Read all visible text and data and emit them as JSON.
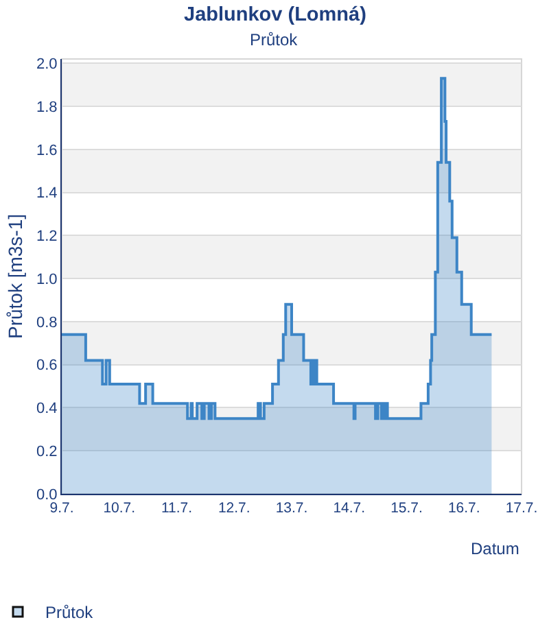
{
  "chart_data": {
    "type": "area",
    "title": "Jablunkov (Lomná)",
    "subtitle": "Průtok",
    "xlabel": "Datum",
    "ylabel": "Průtok [m3s-1]",
    "x": [
      "--07-09T00:00",
      "--07-09T10:00",
      "--07-09T10:00",
      "--07-09T17:00",
      "--07-09T17:00",
      "--07-09T18:30",
      "--07-09T18:30",
      "--07-09T20:00",
      "--07-09T20:00",
      "--07-10T08:30",
      "--07-10T08:30",
      "--07-10T11:00",
      "--07-10T11:00",
      "--07-10T14:00",
      "--07-10T14:00",
      "--07-11T04:30",
      "--07-11T04:30",
      "--07-11T06:00",
      "--07-11T06:00",
      "--07-11T06:30",
      "--07-11T06:30",
      "--07-11T08:30",
      "--07-11T08:30",
      "--07-11T10:30",
      "--07-11T10:30",
      "--07-11T11:30",
      "--07-11T11:30",
      "--07-11T13:30",
      "--07-11T13:30",
      "--07-11T14:30",
      "--07-11T14:30",
      "--07-11T16:00",
      "--07-11T16:00",
      "--07-12T10:00",
      "--07-12T10:00",
      "--07-12T11:00",
      "--07-12T11:00",
      "--07-12T12:30",
      "--07-12T12:30",
      "--07-12T16:00",
      "--07-12T16:00",
      "--07-12T18:30",
      "--07-12T18:30",
      "--07-12T20:30",
      "--07-12T20:30",
      "--07-12T21:30",
      "--07-12T21:30",
      "--07-13T00:00",
      "--07-13T00:00",
      "--07-13T05:00",
      "--07-13T05:00",
      "--07-13T08:00",
      "--07-13T08:00",
      "--07-13T09:00",
      "--07-13T09:00",
      "--07-13T09:30",
      "--07-13T09:30",
      "--07-13T10:00",
      "--07-13T10:00",
      "--07-13T10:30",
      "--07-13T10:30",
      "--07-13T17:30",
      "--07-13T17:30",
      "--07-14T02:00",
      "--07-14T02:00",
      "--07-14T02:30",
      "--07-14T02:30",
      "--07-14T11:00",
      "--07-14T11:00",
      "--07-14T12:00",
      "--07-14T12:00",
      "--07-14T13:30",
      "--07-14T13:30",
      "--07-14T14:00",
      "--07-14T14:00",
      "--07-14T15:00",
      "--07-14T15:00",
      "--07-14T15:30",
      "--07-14T15:30",
      "--07-14T16:00",
      "--07-14T16:00",
      "--07-15T06:00",
      "--07-15T06:00",
      "--07-15T09:00",
      "--07-15T09:00",
      "--07-15T10:00",
      "--07-15T10:00",
      "--07-15T10:30",
      "--07-15T10:30",
      "--07-15T12:00",
      "--07-15T12:00",
      "--07-15T13:00",
      "--07-15T13:00",
      "--07-15T14:30",
      "--07-15T14:30",
      "--07-15T16:00",
      "--07-15T16:00",
      "--07-15T16:30",
      "--07-15T16:30",
      "--07-15T18:00",
      "--07-15T18:00",
      "--07-15T19:00",
      "--07-15T19:00",
      "--07-15T21:00",
      "--07-15T21:00",
      "--07-15T23:00",
      "--07-15T23:00",
      "--07-16T03:00",
      "--07-16T03:00",
      "--07-16T11:30"
    ],
    "series": [
      {
        "name": "Průtok",
        "color": "#3d85c6",
        "values": [
          0.74,
          0.74,
          0.62,
          0.62,
          0.51,
          0.51,
          0.62,
          0.62,
          0.51,
          0.51,
          0.42,
          0.42,
          0.51,
          0.51,
          0.42,
          0.42,
          0.35,
          0.35,
          0.42,
          0.42,
          0.35,
          0.35,
          0.42,
          0.42,
          0.35,
          0.35,
          0.42,
          0.42,
          0.35,
          0.35,
          0.42,
          0.42,
          0.35,
          0.35,
          0.42,
          0.42,
          0.35,
          0.35,
          0.42,
          0.42,
          0.51,
          0.51,
          0.62,
          0.62,
          0.74,
          0.74,
          0.88,
          0.88,
          0.74,
          0.74,
          0.62,
          0.62,
          0.51,
          0.51,
          0.62,
          0.62,
          0.51,
          0.51,
          0.62,
          0.62,
          0.51,
          0.51,
          0.42,
          0.42,
          0.35,
          0.35,
          0.42,
          0.42,
          0.35,
          0.35,
          0.42,
          0.42,
          0.35,
          0.35,
          0.42,
          0.42,
          0.35,
          0.35,
          0.42,
          0.42,
          0.35,
          0.35,
          0.42,
          0.42,
          0.51,
          0.51,
          0.62,
          0.62,
          0.74,
          0.74,
          1.03,
          1.03,
          1.54,
          1.54,
          1.93,
          1.93,
          1.73,
          1.73,
          1.54,
          1.54,
          1.36,
          1.36,
          1.19,
          1.19,
          1.03,
          1.03,
          0.88,
          0.88,
          0.74,
          0.74
        ]
      }
    ],
    "xlim": [
      "--07-09",
      "--07-17"
    ],
    "xticks": [
      {
        "value": "--07-09",
        "label": "9.7."
      },
      {
        "value": "--07-10",
        "label": "10.7."
      },
      {
        "value": "--07-11",
        "label": "11.7."
      },
      {
        "value": "--07-12",
        "label": "12.7."
      },
      {
        "value": "--07-13",
        "label": "13.7."
      },
      {
        "value": "--07-14",
        "label": "14.7."
      },
      {
        "value": "--07-15",
        "label": "15.7."
      },
      {
        "value": "--07-16",
        "label": "16.7."
      },
      {
        "value": "--07-17",
        "label": "17.7."
      }
    ],
    "ylim": [
      0,
      2.02
    ],
    "yticks": [
      {
        "value": 0,
        "label": "0.0"
      },
      0.2,
      0.4,
      0.6,
      0.8,
      {
        "value": 1,
        "label": "1.0"
      },
      1.2,
      1.4,
      1.6,
      1.8,
      {
        "value": 2,
        "label": "2.0"
      }
    ],
    "bands": [
      {
        "axis": "y",
        "from": 0.2,
        "to": 0.4,
        "color": "#f2f2f2"
      },
      {
        "axis": "y",
        "from": 0.6,
        "to": 0.8,
        "color": "#f2f2f2"
      },
      {
        "axis": "y",
        "from": 1.0,
        "to": 1.2,
        "color": "#f2f2f2"
      },
      {
        "axis": "y",
        "from": 1.4,
        "to": 1.6,
        "color": "#f2f2f2"
      },
      {
        "axis": "y",
        "from": 1.8,
        "to": 2.0,
        "color": "#f2f2f2"
      }
    ],
    "grid": "y",
    "legend": "bottom left"
  }
}
